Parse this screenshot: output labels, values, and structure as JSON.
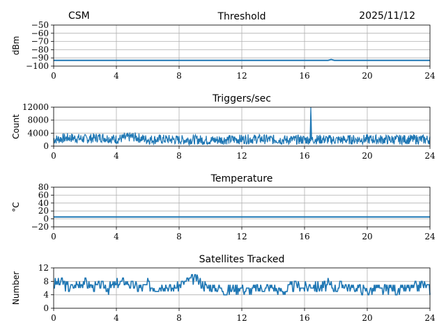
{
  "header": {
    "left": "CSM",
    "date": "2025/11/12"
  },
  "colors": {
    "series": "#1f77b4",
    "grid": "#b0b0b0",
    "frame": "#000000"
  },
  "chart_data": [
    {
      "type": "line",
      "title": "Threshold",
      "xlabel": "",
      "ylabel": "dBm",
      "xlim": [
        0,
        24
      ],
      "ylim": [
        -100,
        -50
      ],
      "xticks": [
        0,
        4,
        8,
        12,
        16,
        20,
        24
      ],
      "yticks": [
        -100,
        -90,
        -80,
        -70,
        -60,
        -50
      ],
      "grid": true,
      "series": [
        {
          "x": [
            0,
            17.5,
            17.7,
            17.9,
            24
          ],
          "y": [
            -93,
            -93,
            -92,
            -93,
            -93
          ]
        }
      ]
    },
    {
      "type": "line",
      "title": "Triggers/sec",
      "xlabel": "",
      "ylabel": "Count",
      "xlim": [
        0,
        24
      ],
      "ylim": [
        0,
        12000
      ],
      "xticks": [
        0,
        4,
        8,
        12,
        16,
        20,
        24
      ],
      "yticks": [
        0,
        4000,
        8000,
        12000
      ],
      "grid": true,
      "series": [
        {
          "x": [
            0,
            1,
            2,
            3,
            4,
            5,
            6,
            7,
            8,
            9,
            10,
            11,
            12,
            13,
            14,
            15,
            16,
            16.35,
            16.4,
            16.45,
            17,
            18,
            19,
            20,
            21,
            22,
            23,
            24
          ],
          "y": [
            2000,
            2600,
            2200,
            2700,
            2100,
            2900,
            2000,
            2100,
            1900,
            2000,
            1800,
            2000,
            2100,
            2200,
            2000,
            1900,
            2000,
            2000,
            12000,
            2000,
            2100,
            1900,
            2000,
            2100,
            2000,
            2000,
            2100,
            2000
          ]
        }
      ]
    },
    {
      "type": "line",
      "title": "Temperature",
      "xlabel": "",
      "ylabel": "°C",
      "xlim": [
        0,
        24
      ],
      "ylim": [
        -20,
        80
      ],
      "xticks": [
        0,
        4,
        8,
        12,
        16,
        20,
        24
      ],
      "yticks": [
        -20,
        0,
        20,
        40,
        60,
        80
      ],
      "grid": true,
      "series": [
        {
          "x": [
            0,
            24
          ],
          "y": [
            5,
            5
          ]
        }
      ]
    },
    {
      "type": "line",
      "title": "Satellites Tracked",
      "xlabel": "",
      "ylabel": "Number",
      "xlim": [
        0,
        24
      ],
      "ylim": [
        0,
        12
      ],
      "xticks": [
        0,
        4,
        8,
        12,
        16,
        20,
        24
      ],
      "yticks": [
        0,
        4,
        8,
        12
      ],
      "grid": true,
      "series": [
        {
          "x": [
            0,
            0.5,
            1,
            1.5,
            2,
            2.5,
            3,
            3.5,
            4,
            4.5,
            5,
            5.5,
            6,
            6.5,
            7,
            7.5,
            8,
            8.5,
            9,
            9.5,
            10,
            10.5,
            11,
            11.5,
            12,
            12.5,
            13,
            13.5,
            14,
            14.5,
            15,
            15.5,
            16,
            16.5,
            17,
            17.5,
            18,
            18.5,
            19,
            19.5,
            20,
            20.5,
            21,
            21.5,
            22,
            22.5,
            23,
            23.5,
            24
          ],
          "y": [
            7,
            8,
            6,
            7,
            8,
            6,
            7,
            6,
            7,
            8,
            7,
            6,
            7,
            6,
            7,
            6,
            7,
            8,
            9,
            7,
            6,
            6,
            5,
            6,
            6,
            5,
            6,
            6,
            6,
            5,
            6,
            7,
            6,
            7,
            6,
            7,
            6,
            7,
            6,
            6,
            5,
            6,
            5,
            6,
            5,
            6,
            6,
            7,
            6
          ]
        }
      ]
    }
  ]
}
